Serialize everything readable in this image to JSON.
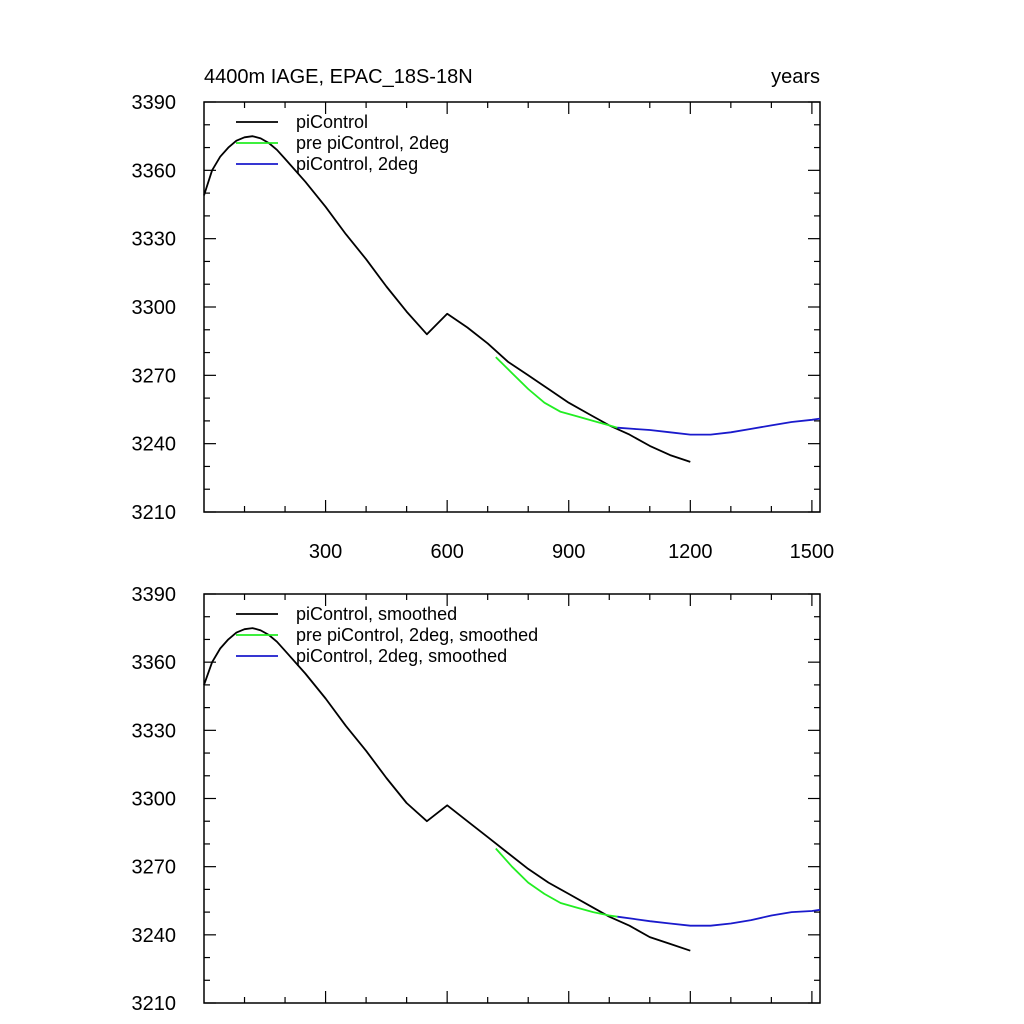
{
  "title": "4400m IAGE, EPAC_18S-18N",
  "right_title": "years",
  "colors": {
    "piControl": "#000000",
    "pre_piControl_2deg": "#22ee22",
    "piControl_2deg": "#1a1acc"
  },
  "chart_data": [
    {
      "type": "line",
      "title": "4400m IAGE, EPAC_18S-18N",
      "right_title": "years",
      "xlim": [
        0,
        1520
      ],
      "ylim": [
        3210,
        3390
      ],
      "xticks": [
        300,
        600,
        900,
        1200,
        1500
      ],
      "xtick_labels": [
        "300",
        "600",
        "900",
        "1200",
        "1500"
      ],
      "yticks": [
        3210,
        3240,
        3270,
        3300,
        3330,
        3360,
        3390
      ],
      "ytick_labels": [
        "3210",
        "3240",
        "3270",
        "3300",
        "3330",
        "3360",
        "3390"
      ],
      "grid": false,
      "legend_position": "top-left",
      "series": [
        {
          "name": "piControl",
          "color": "#000000",
          "x": [
            0,
            20,
            40,
            60,
            80,
            100,
            120,
            140,
            160,
            180,
            200,
            250,
            300,
            350,
            400,
            450,
            500,
            550,
            600,
            650,
            700,
            750,
            800,
            850,
            900,
            950,
            1000,
            1050,
            1100,
            1150,
            1200
          ],
          "y": [
            3349,
            3360,
            3366,
            3370,
            3373,
            3374.5,
            3375,
            3374,
            3372,
            3369,
            3365,
            3355,
            3344,
            3332,
            3321,
            3309,
            3298,
            3288,
            3297,
            3291,
            3284,
            3276,
            3270,
            3264,
            3258,
            3253,
            3248,
            3244,
            3239,
            3235,
            3232
          ]
        },
        {
          "name": "pre piControl, 2deg",
          "color": "#22ee22",
          "x": [
            720,
            760,
            800,
            840,
            880,
            920,
            960,
            1000,
            1020
          ],
          "y": [
            3278,
            3271,
            3264,
            3258,
            3254,
            3252,
            3250,
            3248,
            3247
          ]
        },
        {
          "name": "piControl, 2deg",
          "color": "#1a1acc",
          "x": [
            1020,
            1060,
            1100,
            1150,
            1200,
            1250,
            1300,
            1350,
            1400,
            1450,
            1500,
            1520
          ],
          "y": [
            3247,
            3246.5,
            3246,
            3245,
            3244,
            3244,
            3245,
            3246.5,
            3248,
            3249.5,
            3250.5,
            3251
          ]
        }
      ]
    },
    {
      "type": "line",
      "xlim": [
        0,
        1520
      ],
      "ylim": [
        3210,
        3390
      ],
      "xticks": [
        300,
        600,
        900,
        1200,
        1500
      ],
      "yticks": [
        3210,
        3240,
        3270,
        3300,
        3330,
        3360,
        3390
      ],
      "ytick_labels": [
        "3210",
        "3240",
        "3270",
        "3300",
        "3330",
        "3360",
        "3390"
      ],
      "grid": false,
      "legend_position": "top-left",
      "series": [
        {
          "name": "piControl, smoothed",
          "color": "#000000",
          "x": [
            0,
            20,
            40,
            60,
            80,
            100,
            120,
            140,
            160,
            180,
            200,
            250,
            300,
            350,
            400,
            450,
            500,
            550,
            600,
            650,
            700,
            750,
            800,
            850,
            900,
            950,
            1000,
            1050,
            1100,
            1150,
            1200
          ],
          "y": [
            3350,
            3360,
            3366,
            3370,
            3373,
            3374.5,
            3375,
            3374,
            3372,
            3369,
            3365,
            3355,
            3344,
            3332,
            3321,
            3309,
            3298,
            3290,
            3297,
            3290,
            3283,
            3276,
            3269,
            3263,
            3258,
            3253,
            3248,
            3244,
            3239,
            3236,
            3233
          ]
        },
        {
          "name": "pre piControl, 2deg, smoothed",
          "color": "#22ee22",
          "x": [
            720,
            760,
            800,
            840,
            880,
            920,
            960,
            1000,
            1020
          ],
          "y": [
            3278,
            3270,
            3263,
            3258,
            3254,
            3252,
            3250,
            3248.5,
            3248
          ]
        },
        {
          "name": "piControl, 2deg, smoothed",
          "color": "#1a1acc",
          "x": [
            1020,
            1060,
            1100,
            1150,
            1200,
            1250,
            1300,
            1350,
            1400,
            1450,
            1500,
            1520
          ],
          "y": [
            3248,
            3247,
            3246,
            3245,
            3244,
            3244,
            3245,
            3246.5,
            3248.5,
            3250,
            3250.5,
            3251
          ]
        }
      ]
    }
  ]
}
